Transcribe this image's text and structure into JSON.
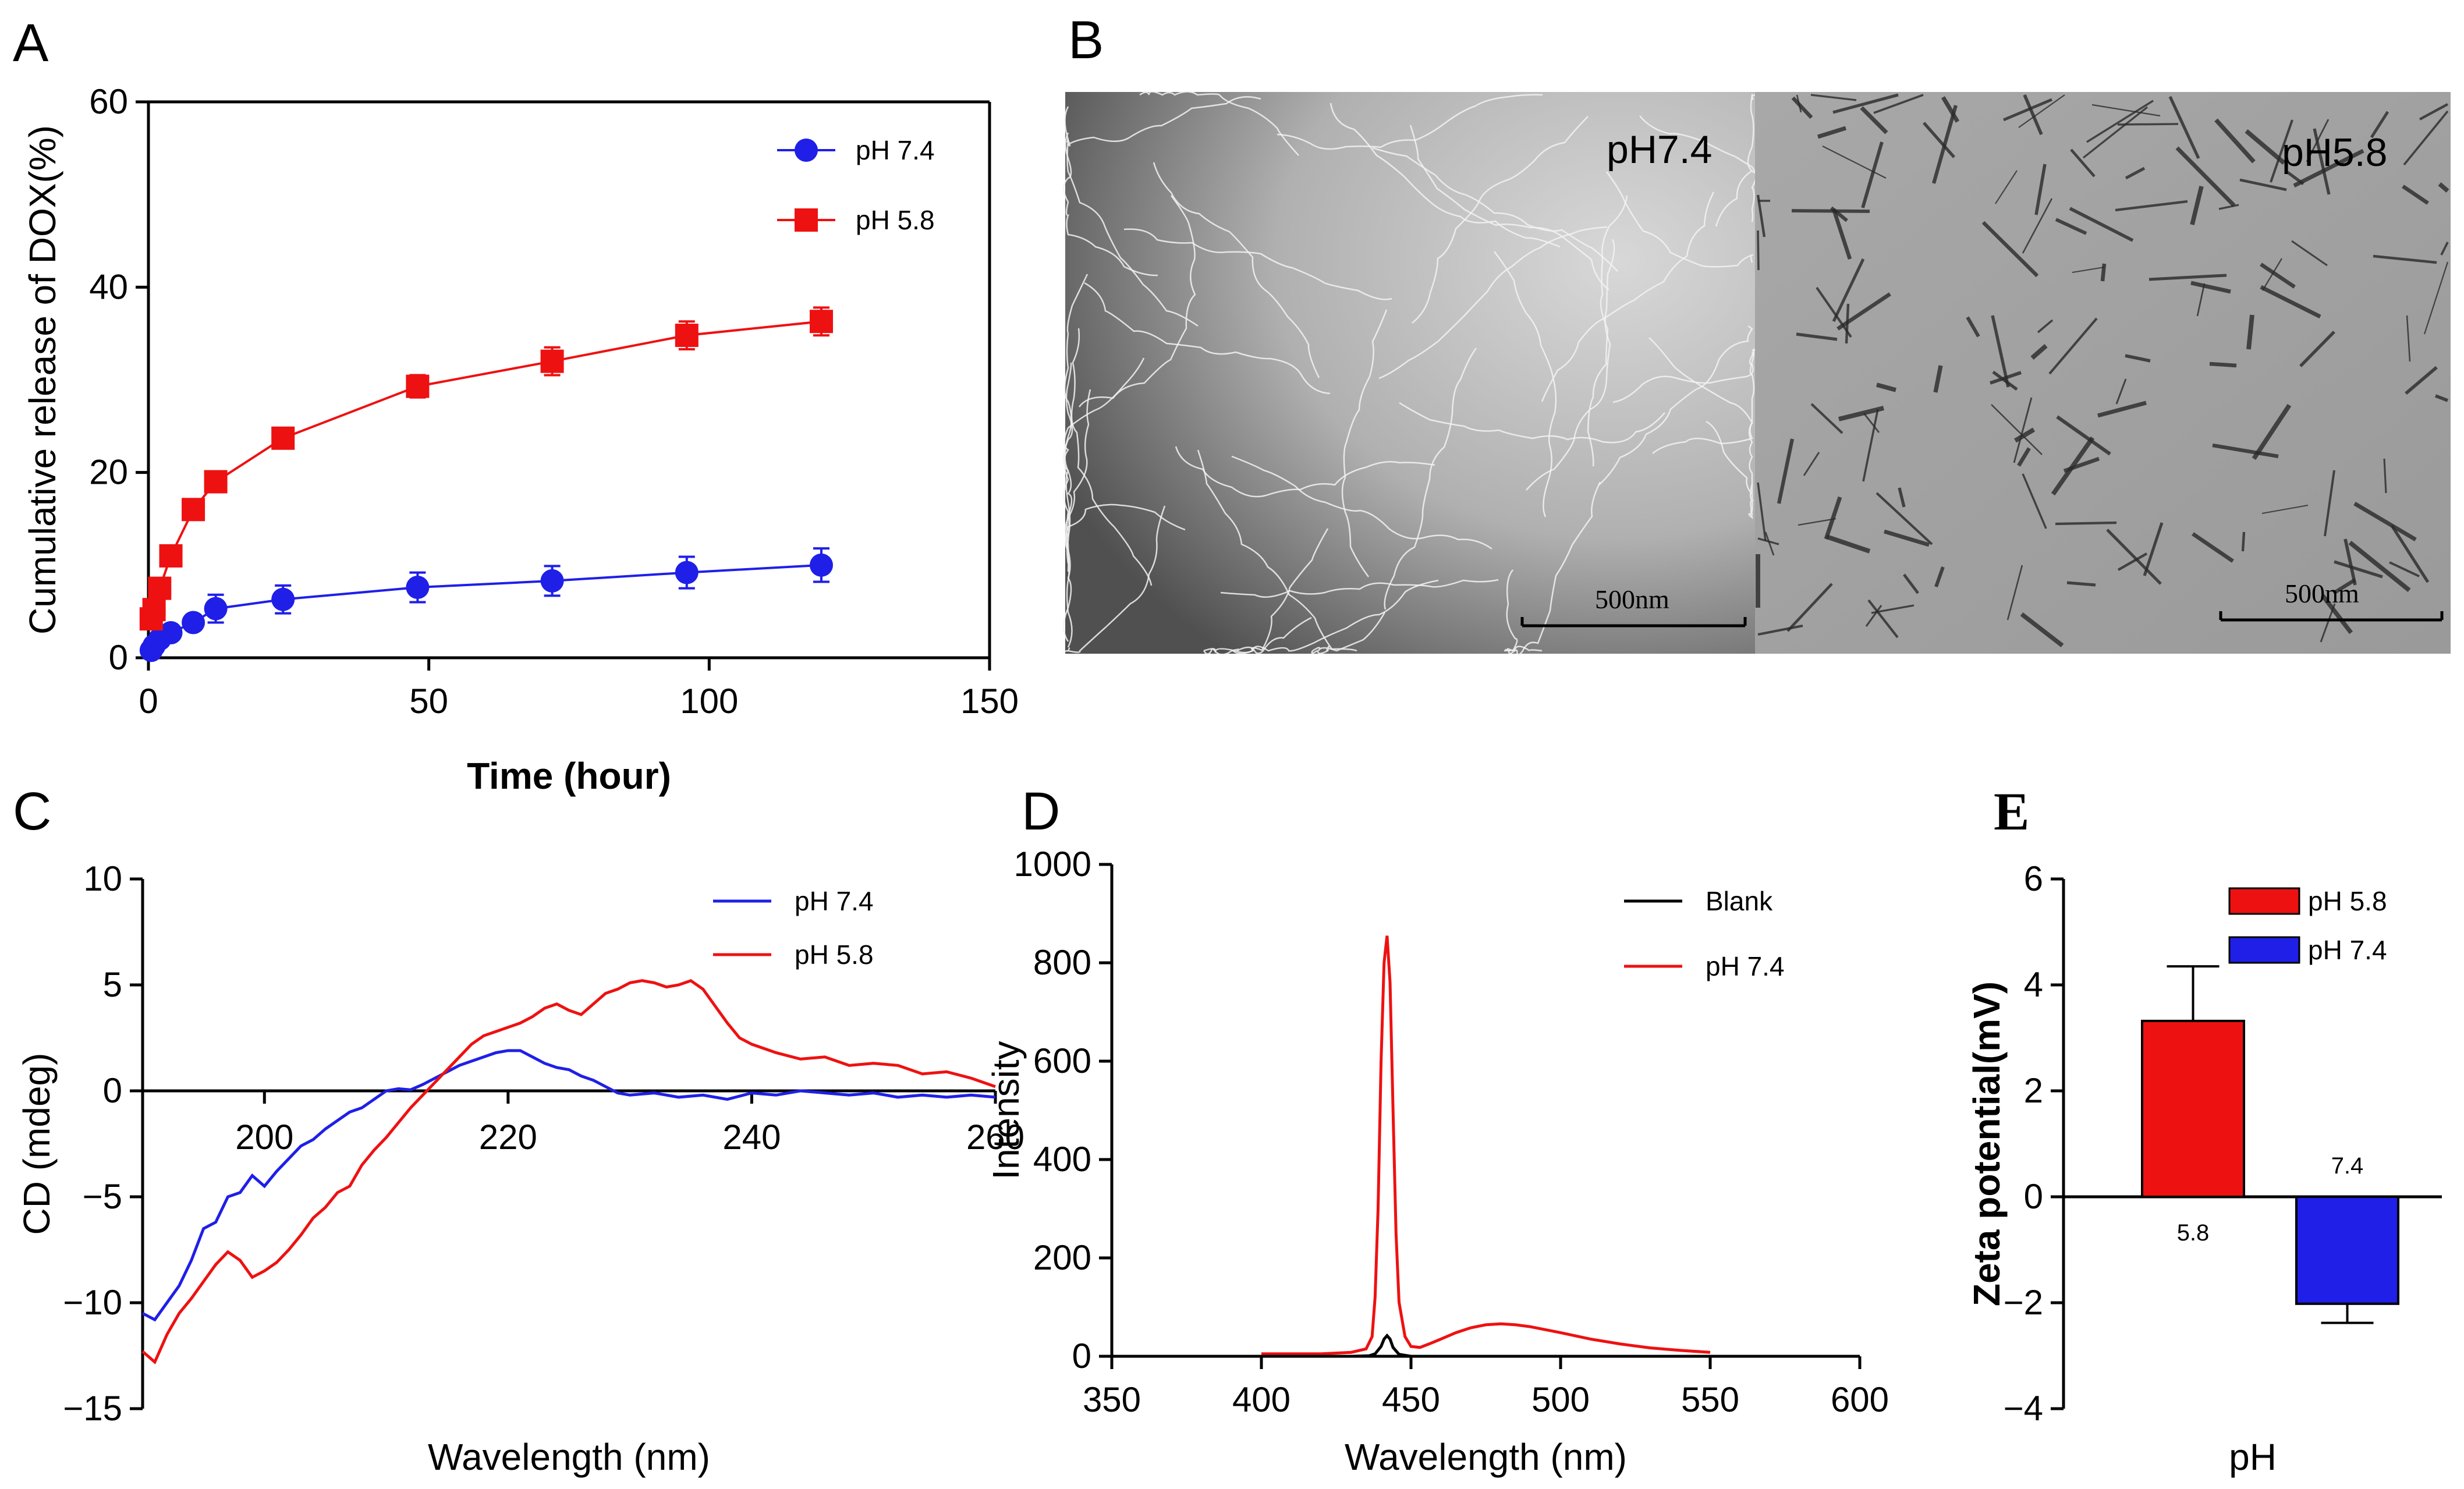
{
  "panel_letters": {
    "a": "A",
    "b": "B",
    "c": "C",
    "d": "D",
    "e": "E"
  },
  "colors": {
    "blue": "#1f1fe8",
    "red": "#ee1111",
    "black": "#000000"
  },
  "chart_data": [
    {
      "id": "A",
      "type": "line",
      "xlabel": "Time (hour)",
      "ylabel": "Cumulative release of DOX(%)",
      "xlim": [
        0,
        150
      ],
      "ylim": [
        0,
        60
      ],
      "xticks": [
        0,
        50,
        100,
        150
      ],
      "yticks": [
        0,
        20,
        40,
        60
      ],
      "xtick_labels": [
        "0",
        "50",
        "100",
        "150"
      ],
      "ytick_labels": [
        "0",
        "20",
        "40",
        "60"
      ],
      "legend_position": "top-right",
      "series": [
        {
          "name": "pH 7.4",
          "color": "#1f1fe8",
          "marker": "circle",
          "x": [
            0.5,
            1,
            2,
            4,
            8,
            12,
            24,
            48,
            72,
            96,
            120
          ],
          "y": [
            0.8,
            1.3,
            2.0,
            2.7,
            3.8,
            5.3,
            6.3,
            7.6,
            8.3,
            9.2,
            10.0
          ],
          "err": [
            0.3,
            0.3,
            0.4,
            0.5,
            0.8,
            1.5,
            1.5,
            1.6,
            1.6,
            1.7,
            1.8
          ]
        },
        {
          "name": "pH 5.8",
          "color": "#ee1111",
          "marker": "square",
          "x": [
            0.5,
            1,
            2,
            4,
            8,
            12,
            24,
            48,
            72,
            96,
            120
          ],
          "y": [
            4.2,
            5.2,
            7.5,
            11.0,
            16.0,
            19.0,
            23.7,
            29.3,
            32.0,
            34.8,
            36.3
          ],
          "err": [
            0.5,
            0.5,
            0.6,
            0.8,
            0.8,
            0.8,
            0.9,
            1.2,
            1.5,
            1.5,
            1.5
          ]
        }
      ]
    },
    {
      "id": "C",
      "type": "line",
      "xlabel": "Wavelength (nm)",
      "ylabel": "CD (mdeg)",
      "xlim": [
        190,
        260
      ],
      "ylim": [
        -15,
        10
      ],
      "xticks": [
        200,
        220,
        240,
        260
      ],
      "yticks": [
        -15,
        -10,
        -5,
        0,
        5,
        10
      ],
      "xtick_labels": [
        "200",
        "220",
        "240",
        "260"
      ],
      "ytick_labels": [
        "−15",
        "−10",
        "−5",
        "0",
        "5",
        "10"
      ],
      "legend_position": "top-right",
      "series": [
        {
          "name": "pH 7.4",
          "color": "#1f1fe8",
          "x": [
            190,
            191,
            192,
            193,
            194,
            195,
            196,
            197,
            198,
            199,
            200,
            201,
            202,
            203,
            204,
            205,
            206,
            207,
            208,
            209,
            210,
            211,
            212,
            213,
            214,
            215,
            216,
            217,
            218,
            219,
            220,
            221,
            222,
            223,
            224,
            225,
            226,
            227,
            228,
            229,
            230,
            232,
            234,
            236,
            238,
            240,
            242,
            244,
            246,
            248,
            250,
            252,
            254,
            256,
            258,
            260
          ],
          "y": [
            -10.5,
            -10.8,
            -10.0,
            -9.2,
            -8.0,
            -6.5,
            -6.2,
            -5.0,
            -4.8,
            -4.0,
            -4.5,
            -3.8,
            -3.2,
            -2.6,
            -2.3,
            -1.8,
            -1.4,
            -1.0,
            -0.8,
            -0.4,
            0.0,
            0.1,
            0.05,
            0.3,
            0.6,
            0.9,
            1.2,
            1.4,
            1.6,
            1.8,
            1.9,
            1.9,
            1.6,
            1.3,
            1.1,
            1.0,
            0.7,
            0.5,
            0.2,
            -0.1,
            -0.2,
            -0.1,
            -0.3,
            -0.2,
            -0.4,
            -0.1,
            -0.2,
            0.0,
            -0.1,
            -0.2,
            -0.1,
            -0.3,
            -0.2,
            -0.3,
            -0.2,
            -0.3
          ]
        },
        {
          "name": "pH 5.8",
          "color": "#ee1111",
          "x": [
            190,
            191,
            192,
            193,
            194,
            195,
            196,
            197,
            198,
            199,
            200,
            201,
            202,
            203,
            204,
            205,
            206,
            207,
            208,
            209,
            210,
            211,
            212,
            213,
            214,
            215,
            216,
            217,
            218,
            219,
            220,
            221,
            222,
            223,
            224,
            225,
            226,
            227,
            228,
            229,
            230,
            231,
            232,
            233,
            234,
            235,
            236,
            237,
            238,
            239,
            240,
            242,
            244,
            246,
            248,
            250,
            252,
            254,
            256,
            258,
            260
          ],
          "y": [
            -12.3,
            -12.8,
            -11.5,
            -10.5,
            -9.8,
            -9.0,
            -8.2,
            -7.6,
            -8.0,
            -8.8,
            -8.5,
            -8.1,
            -7.5,
            -6.8,
            -6.0,
            -5.5,
            -4.8,
            -4.5,
            -3.5,
            -2.8,
            -2.2,
            -1.5,
            -0.8,
            -0.2,
            0.4,
            1.0,
            1.6,
            2.2,
            2.6,
            2.8,
            3.0,
            3.2,
            3.5,
            3.9,
            4.1,
            3.8,
            3.6,
            4.1,
            4.6,
            4.8,
            5.1,
            5.2,
            5.1,
            4.9,
            5.0,
            5.2,
            4.8,
            4.0,
            3.2,
            2.5,
            2.2,
            1.8,
            1.5,
            1.6,
            1.2,
            1.3,
            1.2,
            0.8,
            0.9,
            0.6,
            0.2
          ]
        }
      ]
    },
    {
      "id": "D",
      "type": "line",
      "xlabel": "Wavelength (nm)",
      "ylabel": "Intensity",
      "xlim": [
        350,
        600
      ],
      "ylim": [
        0,
        1000
      ],
      "xticks": [
        350,
        400,
        450,
        500,
        550,
        600
      ],
      "yticks": [
        0,
        200,
        400,
        600,
        800,
        1000
      ],
      "xtick_labels": [
        "350",
        "400",
        "450",
        "500",
        "550",
        "600"
      ],
      "ytick_labels": [
        "0",
        "200",
        "400",
        "600",
        "800",
        "1000"
      ],
      "legend_position": "top-right",
      "series": [
        {
          "name": "Blank",
          "color": "#000000",
          "x": [
            400,
            430,
            436,
            438,
            440,
            441,
            442,
            443,
            444,
            446,
            450,
            470,
            500,
            550
          ],
          "y": [
            0,
            0,
            1,
            5,
            20,
            35,
            42,
            35,
            18,
            4,
            0,
            0,
            0,
            0
          ]
        },
        {
          "name": "pH 7.4",
          "color": "#ee1111",
          "x": [
            400,
            420,
            430,
            435,
            437,
            438,
            439,
            440,
            441,
            442,
            443,
            444,
            445,
            446,
            448,
            450,
            453,
            456,
            460,
            465,
            470,
            475,
            480,
            485,
            490,
            500,
            510,
            520,
            530,
            540,
            550
          ],
          "y": [
            5,
            5,
            8,
            15,
            40,
            120,
            300,
            600,
            800,
            855,
            760,
            500,
            250,
            110,
            40,
            20,
            18,
            25,
            35,
            48,
            58,
            64,
            66,
            64,
            60,
            48,
            35,
            25,
            17,
            12,
            8
          ]
        }
      ]
    },
    {
      "id": "E",
      "type": "bar",
      "xlabel": "pH",
      "ylabel": "Zeta potential(mV)",
      "ylim": [
        -4,
        6
      ],
      "yticks": [
        -4,
        -2,
        0,
        2,
        4,
        6
      ],
      "ytick_labels": [
        "−4",
        "−2",
        "0",
        "2",
        "4",
        "6"
      ],
      "categories": [
        "5.8",
        "7.4"
      ],
      "values": [
        3.32,
        -2.02
      ],
      "errors": [
        1.03,
        0.36
      ],
      "colors": [
        "#ee1111",
        "#1f1fe8"
      ],
      "legend": [
        "pH 5.8",
        "pH 7.4"
      ],
      "legend_position": "top-right"
    }
  ],
  "tem": {
    "left_label": "pH7.4",
    "right_label": "pH5.8",
    "left_scale": "500nm",
    "right_scale": "500nm"
  }
}
